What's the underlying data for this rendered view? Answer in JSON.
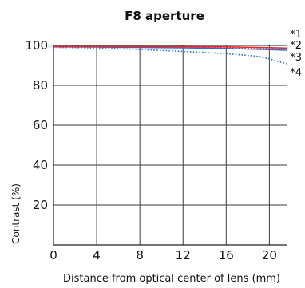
{
  "chart_data": {
    "type": "line",
    "title": "F8 aperture",
    "xlabel": "Distance from optical center of lens (mm)",
    "ylabel": "Contrast (%)",
    "xlim": [
      0,
      21.6
    ],
    "ylim": [
      0,
      100
    ],
    "x_ticks": [
      0,
      4,
      8,
      12,
      16,
      20
    ],
    "y_ticks": [
      20,
      40,
      60,
      80,
      100
    ],
    "grid": true,
    "series": [
      {
        "name": "*1",
        "color": "#e8262b",
        "dash": "solid",
        "points": [
          [
            0,
            99.4
          ],
          [
            4,
            99.4
          ],
          [
            8,
            99.4
          ],
          [
            12,
            99.4
          ],
          [
            16,
            99.3
          ],
          [
            18,
            99.1
          ],
          [
            20,
            98.9
          ],
          [
            21.6,
            98.7
          ]
        ]
      },
      {
        "name": "*2",
        "color": "#e8262b",
        "dash": "dotted",
        "points": [
          [
            0,
            99.4
          ],
          [
            4,
            99.4
          ],
          [
            8,
            99.3
          ],
          [
            12,
            99.2
          ],
          [
            16,
            99.0
          ],
          [
            18,
            98.8
          ],
          [
            20,
            98.6
          ],
          [
            21.6,
            98.3
          ]
        ]
      },
      {
        "name": "*3",
        "color": "#2a6fd6",
        "dash": "solid",
        "points": [
          [
            0,
            99.3
          ],
          [
            4,
            99.2
          ],
          [
            8,
            99.0
          ],
          [
            12,
            98.8
          ],
          [
            16,
            98.5
          ],
          [
            18,
            98.2
          ],
          [
            20,
            97.9
          ],
          [
            21.6,
            97.6
          ]
        ]
      },
      {
        "name": "*4",
        "color": "#2a6fd6",
        "dash": "dotted",
        "points": [
          [
            0,
            99.0
          ],
          [
            4,
            98.8
          ],
          [
            8,
            98.0
          ],
          [
            12,
            97.0
          ],
          [
            16,
            95.9
          ],
          [
            18,
            95.0
          ],
          [
            19,
            94.5
          ],
          [
            20,
            93.2
          ],
          [
            21,
            91.7
          ],
          [
            21.6,
            90.8
          ]
        ]
      }
    ]
  }
}
